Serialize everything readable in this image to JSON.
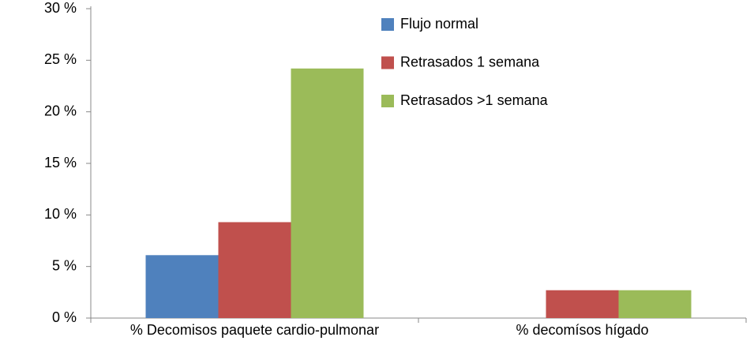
{
  "chart_data": {
    "type": "bar",
    "categories": [
      "% Decomisos paquete cardio-pulmonar",
      "% decomísos hígado"
    ],
    "series": [
      {
        "name": "Flujo normal",
        "color": "#4f81bd",
        "values": [
          6.1,
          0
        ]
      },
      {
        "name": "Retrasados 1 semana",
        "color": "#c0504d",
        "values": [
          9.3,
          2.7
        ]
      },
      {
        "name": "Retrasados >1 semana",
        "color": "#9bbb59",
        "values": [
          24.2,
          2.7
        ]
      }
    ],
    "ylim": [
      0,
      30
    ],
    "yticks": [
      {
        "value": 0,
        "label": "0 %"
      },
      {
        "value": 5,
        "label": "5 %"
      },
      {
        "value": 10,
        "label": "10 %"
      },
      {
        "value": 15,
        "label": "15 %"
      },
      {
        "value": 20,
        "label": "20 %"
      },
      {
        "value": 25,
        "label": "25 %"
      },
      {
        "value": 30,
        "label": "30 %"
      }
    ],
    "grid": false,
    "legend": "top-right"
  }
}
